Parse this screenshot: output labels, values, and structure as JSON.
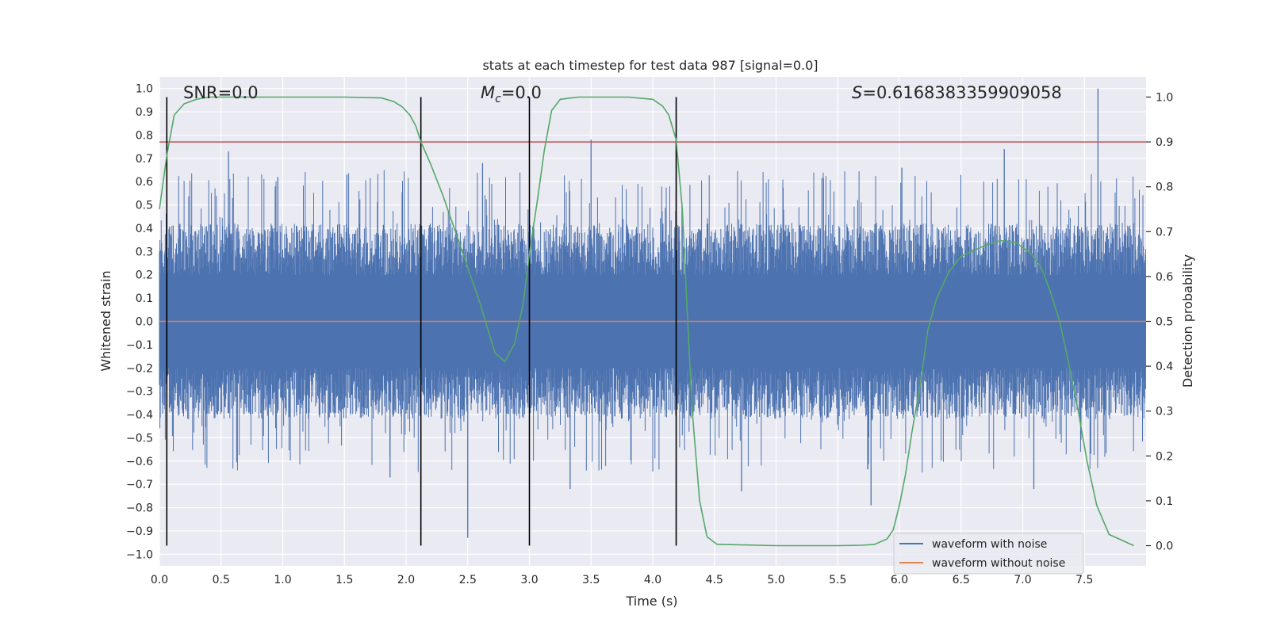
{
  "chart_data": {
    "type": "line",
    "title": "stats at each timestep for test data 987 [signal=0.0]",
    "xlabel": "Time (s)",
    "ylabel": "Whitened strain",
    "y2label": "Detection probability",
    "xlim": [
      0.0,
      8.0
    ],
    "ylim": [
      -1.05,
      1.05
    ],
    "y2lim": [
      -0.045,
      1.045
    ],
    "xticks": [
      "0.0",
      "0.5",
      "1.0",
      "1.5",
      "2.0",
      "2.5",
      "3.0",
      "3.5",
      "4.0",
      "4.5",
      "5.0",
      "5.5",
      "6.0",
      "6.5",
      "7.0",
      "7.5"
    ],
    "yticks": [
      "1.0",
      "0.9",
      "0.8",
      "0.7",
      "0.6",
      "0.5",
      "0.4",
      "0.3",
      "0.2",
      "0.1",
      "0.0",
      "−0.1",
      "−0.2",
      "−0.3",
      "−0.4",
      "−0.5",
      "−0.6",
      "−0.7",
      "−0.8",
      "−0.9",
      "−1.0"
    ],
    "y2ticks": [
      "0.0",
      "0.1",
      "0.2",
      "0.3",
      "0.4",
      "0.5",
      "0.6",
      "0.7",
      "0.8",
      "0.9",
      "1.0"
    ],
    "annotations": {
      "snr": "SNR=0.0",
      "mc_symbol": "M",
      "mc_sub": "c",
      "mc_value": "=0.0",
      "s_symbol": "S",
      "s_value": "=0.6168383359909058"
    },
    "threshold": {
      "value": 0.9,
      "axis": "y2",
      "color": "#c44e52"
    },
    "vertical_lines": [
      0.06,
      2.12,
      3.0,
      4.19
    ],
    "series": [
      {
        "name": "waveform with noise",
        "color": "#4c72b0",
        "kind": "noise",
        "core_amplitude": 0.35,
        "spikes": [
          {
            "x": 0.56,
            "y": 0.73
          },
          {
            "x": 1.52,
            "y": 0.63
          },
          {
            "x": 2.12,
            "y": -0.71
          },
          {
            "x": 2.5,
            "y": -0.93
          },
          {
            "x": 2.62,
            "y": 0.68
          },
          {
            "x": 3.5,
            "y": 0.78
          },
          {
            "x": 4.19,
            "y": 0.77
          },
          {
            "x": 5.77,
            "y": -0.79
          },
          {
            "x": 6.85,
            "y": 0.74
          },
          {
            "x": 7.61,
            "y": 1.0
          },
          {
            "x": 1.87,
            "y": -0.67
          },
          {
            "x": 3.33,
            "y": -0.72
          },
          {
            "x": 4.72,
            "y": -0.73
          },
          {
            "x": 7.09,
            "y": -0.72
          },
          {
            "x": 0.96,
            "y": 0.62
          },
          {
            "x": 6.02,
            "y": 0.66
          }
        ]
      },
      {
        "name": "waveform without noise",
        "color": "#dd8452",
        "x": [
          0.0,
          8.0
        ],
        "y": [
          0.0,
          0.0
        ]
      },
      {
        "name": "detection probability",
        "color": "#55a868",
        "axis": "y2",
        "x": [
          0.0,
          0.06,
          0.12,
          0.2,
          0.3,
          0.4,
          0.6,
          1.0,
          1.5,
          1.8,
          1.9,
          1.97,
          2.03,
          2.08,
          2.12,
          2.2,
          2.3,
          2.45,
          2.6,
          2.72,
          2.8,
          2.88,
          2.95,
          3.0,
          3.07,
          3.12,
          3.18,
          3.25,
          3.4,
          3.8,
          4.0,
          4.08,
          4.13,
          4.19,
          4.24,
          4.28,
          4.32,
          4.38,
          4.44,
          4.52,
          5.0,
          5.5,
          5.7,
          5.8,
          5.9,
          5.95,
          6.0,
          6.05,
          6.1,
          6.17,
          6.23,
          6.3,
          6.4,
          6.5,
          6.7,
          6.82,
          6.95,
          7.07,
          7.15,
          7.22,
          7.3,
          7.37,
          7.45,
          7.52,
          7.6,
          7.7,
          7.9
        ],
        "y": [
          0.75,
          0.87,
          0.96,
          0.985,
          0.995,
          1.0,
          1.0,
          1.0,
          1.0,
          0.998,
          0.99,
          0.978,
          0.96,
          0.935,
          0.9,
          0.85,
          0.78,
          0.66,
          0.54,
          0.43,
          0.41,
          0.45,
          0.54,
          0.65,
          0.78,
          0.88,
          0.97,
          0.995,
          1.0,
          1.0,
          0.995,
          0.98,
          0.96,
          0.905,
          0.75,
          0.52,
          0.3,
          0.1,
          0.02,
          0.003,
          0.0,
          0.0,
          0.001,
          0.003,
          0.015,
          0.035,
          0.09,
          0.16,
          0.25,
          0.36,
          0.48,
          0.55,
          0.61,
          0.645,
          0.67,
          0.68,
          0.675,
          0.65,
          0.62,
          0.57,
          0.5,
          0.41,
          0.3,
          0.19,
          0.09,
          0.025,
          0.0
        ]
      }
    ],
    "legend": {
      "placement": "lower-right",
      "entries": [
        "waveform with noise",
        "waveform without noise"
      ]
    }
  }
}
